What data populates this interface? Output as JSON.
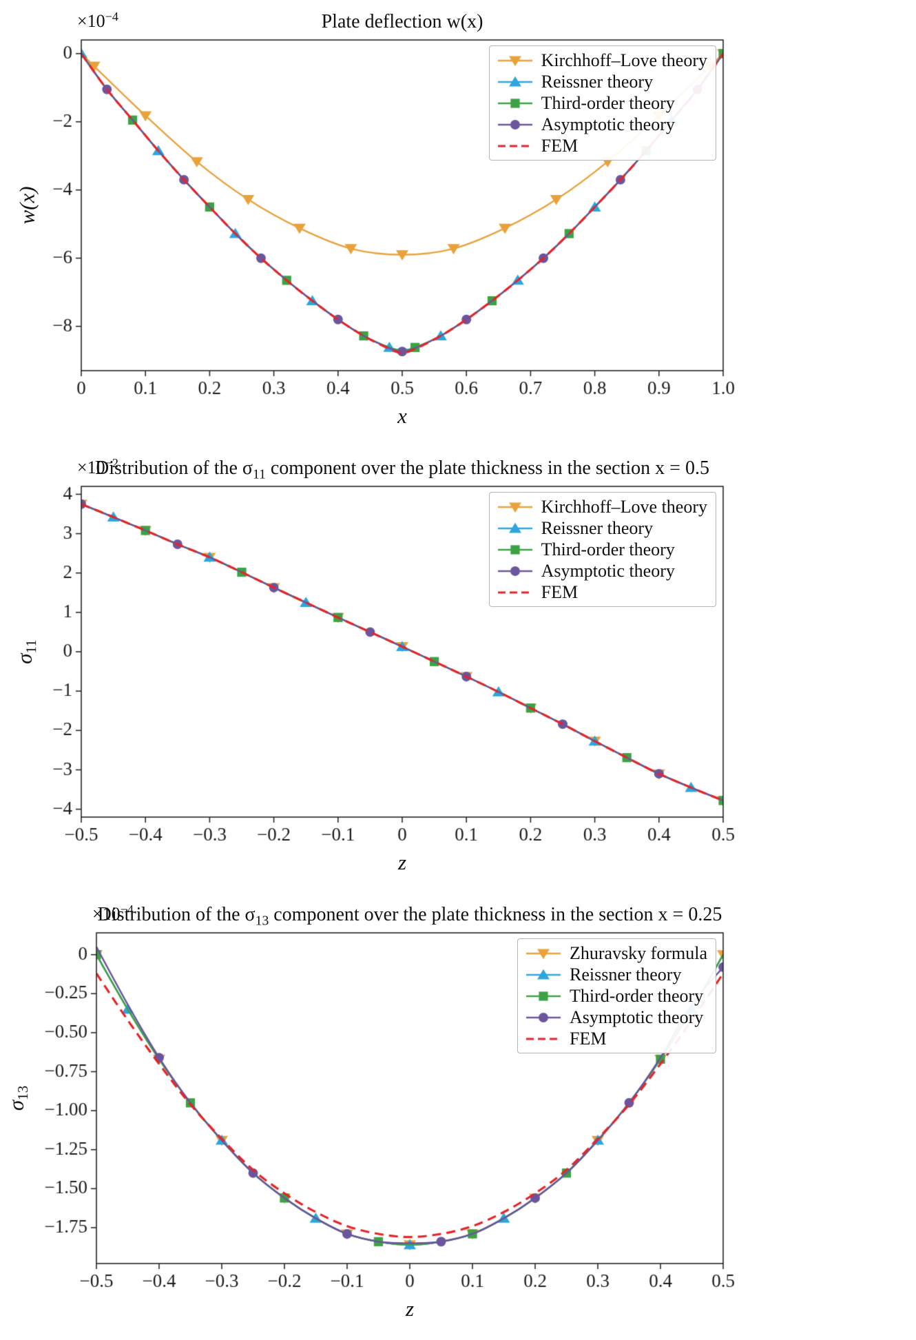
{
  "page": {
    "background": "#ffffff",
    "text_color": "#111111",
    "axis_color": "#262626"
  },
  "chart_data": [
    {
      "type": "line",
      "title": {
        "pre": "Plate deflection w(x)",
        "sub": "",
        "post": ""
      },
      "offset": {
        "base": "×10",
        "exp": "−4"
      },
      "xlabel": "x",
      "ylabel": {
        "main": "w(x)",
        "sub": ""
      },
      "xlim": [
        0,
        1.0
      ],
      "ylim": [
        -9.3,
        0.4
      ],
      "xticks": [
        0,
        0.1,
        0.2,
        0.3,
        0.4,
        0.5,
        0.6,
        0.7,
        0.8,
        0.9,
        1.0
      ],
      "xtick_labels": [
        "0",
        "0.1",
        "0.2",
        "0.3",
        "0.4",
        "0.5",
        "0.6",
        "0.7",
        "0.8",
        "0.9",
        "1.0"
      ],
      "yticks": [
        0,
        -2,
        -4,
        -6,
        -8
      ],
      "ytick_labels": [
        "0",
        "−2",
        "−4",
        "−6",
        "−8"
      ],
      "layout": {
        "legend_loc": "upper right",
        "grid": false
      },
      "x": [
        0,
        0.04,
        0.08,
        0.12,
        0.16,
        0.2,
        0.24,
        0.28,
        0.32,
        0.36,
        0.4,
        0.44,
        0.48,
        0.5,
        0.52,
        0.56,
        0.6,
        0.64,
        0.68,
        0.72,
        0.76,
        0.8,
        0.84,
        0.88,
        0.92,
        0.96,
        1.0
      ],
      "series": [
        {
          "name": "Kirchhoff–Love theory",
          "color": "#e9a23b",
          "marker": "triangle-down",
          "ms": 9,
          "line": "solid",
          "lw": 2.4,
          "markevery": [
            1,
            1
          ],
          "x": [
            0,
            0.02,
            0.1,
            0.18,
            0.26,
            0.34,
            0.42,
            0.5,
            0.58,
            0.66,
            0.74,
            0.82,
            0.9,
            0.98,
            1.0
          ],
          "y": [
            0,
            -0.37,
            -1.82,
            -3.17,
            -4.28,
            -5.12,
            -5.72,
            -5.9,
            -5.72,
            -5.12,
            -4.28,
            -3.17,
            -1.82,
            -0.37,
            0
          ]
        },
        {
          "name": "Reissner theory",
          "color": "#2ea5dc",
          "marker": "triangle-up",
          "ms": 9,
          "line": "solid",
          "lw": 2.4,
          "markevery": [
            0,
            3
          ],
          "y": [
            0,
            -1.05,
            -1.95,
            -2.85,
            -3.7,
            -4.5,
            -5.28,
            -6.0,
            -6.65,
            -7.25,
            -7.8,
            -8.28,
            -8.62,
            -8.7,
            -8.62,
            -8.28,
            -7.8,
            -7.25,
            -6.65,
            -6.0,
            -5.28,
            -4.5,
            -3.7,
            -2.85,
            -1.95,
            -1.05,
            0
          ]
        },
        {
          "name": "Third-order theory",
          "color": "#3da245",
          "marker": "square",
          "ms": 8.5,
          "line": "solid",
          "lw": 2.4,
          "markevery": [
            2,
            3
          ],
          "y": [
            0,
            -1.05,
            -1.95,
            -2.85,
            -3.7,
            -4.5,
            -5.28,
            -6.0,
            -6.65,
            -7.25,
            -7.8,
            -8.28,
            -8.62,
            -8.7,
            -8.62,
            -8.28,
            -7.8,
            -7.25,
            -6.65,
            -6.0,
            -5.28,
            -4.5,
            -3.7,
            -2.85,
            -1.95,
            -1.05,
            0
          ]
        },
        {
          "name": "Asymptotic theory",
          "color": "#6b559d",
          "marker": "circle",
          "ms": 8.5,
          "line": "solid",
          "lw": 2.4,
          "markevery": [
            1,
            3
          ],
          "y": [
            0,
            -1.05,
            -1.95,
            -2.85,
            -3.7,
            -4.5,
            -5.28,
            -6.0,
            -6.65,
            -7.25,
            -7.8,
            -8.28,
            -8.64,
            -8.74,
            -8.64,
            -8.28,
            -7.8,
            -7.25,
            -6.65,
            -6.0,
            -5.28,
            -4.5,
            -3.7,
            -2.85,
            -1.95,
            -1.05,
            0
          ]
        },
        {
          "name": "FEM",
          "color": "#e52528",
          "marker": null,
          "line": "dashed",
          "lw": 3.2,
          "y": [
            0,
            -1.05,
            -1.95,
            -2.85,
            -3.7,
            -4.5,
            -5.28,
            -6.0,
            -6.65,
            -7.25,
            -7.8,
            -8.28,
            -8.66,
            -8.78,
            -8.66,
            -8.28,
            -7.8,
            -7.25,
            -6.65,
            -6.0,
            -5.28,
            -4.5,
            -3.7,
            -2.85,
            -1.95,
            -1.05,
            0
          ]
        }
      ]
    },
    {
      "type": "line",
      "title": {
        "pre": "Distribution of the σ",
        "sub": "11",
        "post": " component over the plate thickness in the section x = 0.5"
      },
      "offset": {
        "base": "×10",
        "exp": "−2"
      },
      "xlabel": "z",
      "ylabel": {
        "main": "σ",
        "sub": "11"
      },
      "xlim": [
        -0.5,
        0.5
      ],
      "ylim": [
        -4.2,
        4.2
      ],
      "xticks": [
        -0.5,
        -0.4,
        -0.3,
        -0.2,
        -0.1,
        0,
        0.1,
        0.2,
        0.3,
        0.4,
        0.5
      ],
      "xtick_labels": [
        "−0.5",
        "−0.4",
        "−0.3",
        "−0.2",
        "−0.1",
        "0",
        "0.1",
        "0.2",
        "0.3",
        "0.4",
        "0.5"
      ],
      "yticks": [
        4,
        3,
        2,
        1,
        0,
        -1,
        -2,
        -3,
        -4
      ],
      "ytick_labels": [
        "4",
        "3",
        "2",
        "1",
        "0",
        "−1",
        "−2",
        "−3",
        "−4"
      ],
      "layout": {
        "legend_loc": "upper right",
        "grid": false
      },
      "x": [
        -0.5,
        -0.45,
        -0.4,
        -0.35,
        -0.3,
        -0.25,
        -0.2,
        -0.15,
        -0.1,
        -0.05,
        0,
        0.05,
        0.1,
        0.15,
        0.2,
        0.25,
        0.3,
        0.35,
        0.4,
        0.45,
        0.5
      ],
      "series": [
        {
          "name": "Kirchhoff–Love theory",
          "color": "#e9a23b",
          "marker": "triangle-down",
          "ms": 9,
          "line": "solid",
          "lw": 2.4,
          "markevery": [
            0,
            2
          ],
          "y": [
            3.75,
            3.42,
            3.08,
            2.73,
            2.4,
            2.02,
            1.63,
            1.25,
            0.87,
            0.5,
            0.13,
            -0.25,
            -0.63,
            -1.02,
            -1.43,
            -1.84,
            -2.27,
            -2.69,
            -3.1,
            -3.45,
            -3.78
          ]
        },
        {
          "name": "Reissner theory",
          "color": "#2ea5dc",
          "marker": "triangle-up",
          "ms": 9,
          "line": "solid",
          "lw": 2.4,
          "markevery": [
            1,
            3
          ],
          "y": [
            3.75,
            3.42,
            3.08,
            2.73,
            2.4,
            2.02,
            1.63,
            1.25,
            0.87,
            0.5,
            0.13,
            -0.25,
            -0.63,
            -1.02,
            -1.43,
            -1.84,
            -2.27,
            -2.69,
            -3.1,
            -3.45,
            -3.78
          ]
        },
        {
          "name": "Third-order theory",
          "color": "#3da245",
          "marker": "square",
          "ms": 8.5,
          "line": "solid",
          "lw": 2.4,
          "markevery": [
            2,
            3
          ],
          "y": [
            3.75,
            3.42,
            3.08,
            2.73,
            2.4,
            2.02,
            1.63,
            1.25,
            0.87,
            0.5,
            0.13,
            -0.25,
            -0.63,
            -1.02,
            -1.43,
            -1.84,
            -2.27,
            -2.69,
            -3.1,
            -3.45,
            -3.78
          ]
        },
        {
          "name": "Asymptotic theory",
          "color": "#6b559d",
          "marker": "circle",
          "ms": 8.5,
          "line": "solid",
          "lw": 2.4,
          "markevery": [
            0,
            3
          ],
          "y": [
            3.75,
            3.42,
            3.08,
            2.73,
            2.4,
            2.02,
            1.63,
            1.25,
            0.87,
            0.5,
            0.13,
            -0.25,
            -0.63,
            -1.02,
            -1.43,
            -1.84,
            -2.27,
            -2.69,
            -3.1,
            -3.45,
            -3.78
          ]
        },
        {
          "name": "FEM",
          "color": "#e52528",
          "marker": null,
          "line": "dashed",
          "lw": 3.2,
          "y": [
            3.75,
            3.42,
            3.08,
            2.73,
            2.4,
            2.02,
            1.63,
            1.25,
            0.87,
            0.5,
            0.13,
            -0.25,
            -0.63,
            -1.02,
            -1.43,
            -1.84,
            -2.27,
            -2.69,
            -3.1,
            -3.45,
            -3.78
          ]
        }
      ]
    },
    {
      "type": "line",
      "title": {
        "pre": "Distribution of the σ",
        "sub": "13",
        "post": " component over the plate thickness in the section x = 0.25"
      },
      "offset": {
        "base": "×10",
        "exp": "−4"
      },
      "xlabel": "z",
      "ylabel": {
        "main": "σ",
        "sub": "13"
      },
      "xlim": [
        -0.5,
        0.5
      ],
      "ylim": [
        -1.98,
        0.14
      ],
      "xticks": [
        -0.5,
        -0.4,
        -0.3,
        -0.2,
        -0.1,
        0,
        0.1,
        0.2,
        0.3,
        0.4,
        0.5
      ],
      "xtick_labels": [
        "−0.5",
        "−0.4",
        "−0.3",
        "−0.2",
        "−0.1",
        "0",
        "0.1",
        "0.2",
        "0.3",
        "0.4",
        "0.5"
      ],
      "yticks": [
        0,
        -0.25,
        -0.5,
        -0.75,
        -1.0,
        -1.25,
        -1.5,
        -1.75
      ],
      "ytick_labels": [
        "0",
        "−0.25",
        "−0.50",
        "−0.75",
        "−1.00",
        "−1.25",
        "−1.50",
        "−1.75"
      ],
      "layout": {
        "legend_loc": "upper right",
        "grid": false
      },
      "x": [
        -0.5,
        -0.45,
        -0.4,
        -0.35,
        -0.3,
        -0.25,
        -0.2,
        -0.15,
        -0.1,
        -0.05,
        0,
        0.05,
        0.1,
        0.15,
        0.2,
        0.25,
        0.3,
        0.35,
        0.4,
        0.45,
        0.5
      ],
      "series": [
        {
          "name": "Zhuravsky formula",
          "color": "#e9a23b",
          "marker": "triangle-down",
          "ms": 9,
          "line": "solid",
          "lw": 2.4,
          "markevery": [
            0,
            2
          ],
          "y": [
            0,
            -0.35,
            -0.67,
            -0.95,
            -1.19,
            -1.4,
            -1.56,
            -1.69,
            -1.79,
            -1.84,
            -1.86,
            -1.84,
            -1.79,
            -1.69,
            -1.56,
            -1.4,
            -1.19,
            -0.95,
            -0.67,
            -0.35,
            0
          ]
        },
        {
          "name": "Reissner theory",
          "color": "#2ea5dc",
          "marker": "triangle-up",
          "ms": 9,
          "line": "solid",
          "lw": 2.4,
          "markevery": [
            1,
            3
          ],
          "y": [
            0,
            -0.35,
            -0.67,
            -0.95,
            -1.19,
            -1.4,
            -1.56,
            -1.69,
            -1.79,
            -1.84,
            -1.86,
            -1.84,
            -1.79,
            -1.69,
            -1.56,
            -1.4,
            -1.19,
            -0.95,
            -0.67,
            -0.35,
            0
          ]
        },
        {
          "name": "Third-order theory",
          "color": "#3da245",
          "marker": "square",
          "ms": 8.5,
          "line": "solid",
          "lw": 2.4,
          "markevery": [
            0,
            3
          ],
          "y": [
            0,
            -0.35,
            -0.67,
            -0.95,
            -1.19,
            -1.4,
            -1.56,
            -1.69,
            -1.79,
            -1.84,
            -1.86,
            -1.84,
            -1.79,
            -1.69,
            -1.56,
            -1.4,
            -1.19,
            -0.95,
            -0.67,
            -0.35,
            0
          ]
        },
        {
          "name": "Asymptotic theory",
          "color": "#6b559d",
          "marker": "circle",
          "ms": 8.5,
          "line": "solid",
          "lw": 2.4,
          "markevery": [
            2,
            3
          ],
          "y": [
            0.05,
            -0.32,
            -0.66,
            -0.95,
            -1.19,
            -1.4,
            -1.56,
            -1.69,
            -1.79,
            -1.84,
            -1.85,
            -1.84,
            -1.79,
            -1.69,
            -1.56,
            -1.4,
            -1.19,
            -0.95,
            -0.66,
            -0.32,
            -0.08
          ]
        },
        {
          "name": "FEM",
          "color": "#e52528",
          "marker": null,
          "line": "dashed",
          "lw": 3.2,
          "y": [
            -0.12,
            -0.42,
            -0.7,
            -0.96,
            -1.18,
            -1.38,
            -1.53,
            -1.65,
            -1.74,
            -1.79,
            -1.81,
            -1.79,
            -1.74,
            -1.65,
            -1.53,
            -1.38,
            -1.18,
            -0.96,
            -0.7,
            -0.42,
            -0.12
          ]
        }
      ]
    }
  ]
}
